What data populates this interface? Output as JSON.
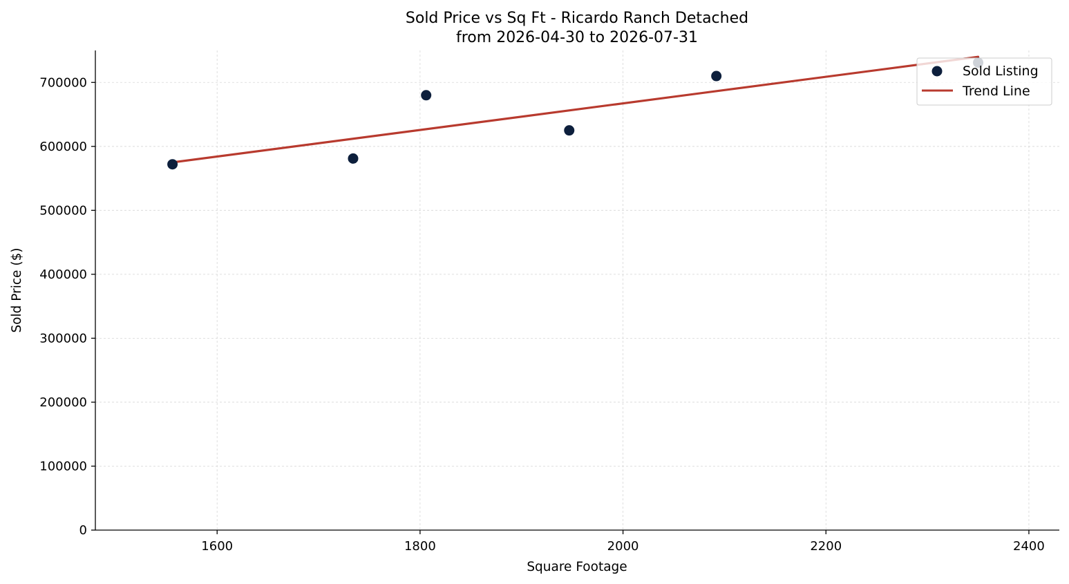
{
  "chart_data": {
    "type": "scatter",
    "title": "Sold Price vs Sq Ft - Ricardo Ranch Detached",
    "subtitle": "from 2026-04-30 to 2026-07-31",
    "xlabel": "Square Footage",
    "ylabel": "Sold Price ($)",
    "xlim": [
      1480,
      2430
    ],
    "ylim": [
      0,
      750000
    ],
    "xticks": [
      1600,
      1800,
      2000,
      2200,
      2400
    ],
    "yticks": [
      0,
      100000,
      200000,
      300000,
      400000,
      500000,
      600000,
      700000
    ],
    "grid": true,
    "legend_position": "top-right",
    "series": [
      {
        "name": "Sold Listing",
        "kind": "scatter",
        "color": "#0d1f3c",
        "points": [
          {
            "x": 1556,
            "y": 572000
          },
          {
            "x": 1734,
            "y": 581000
          },
          {
            "x": 1806,
            "y": 680000
          },
          {
            "x": 1947,
            "y": 625000
          },
          {
            "x": 2092,
            "y": 710000
          },
          {
            "x": 2350,
            "y": 731000
          }
        ]
      },
      {
        "name": "Trend Line",
        "kind": "line",
        "color": "#b83a2e",
        "points": [
          {
            "x": 1556,
            "y": 575000
          },
          {
            "x": 2350,
            "y": 740000
          }
        ]
      }
    ]
  }
}
